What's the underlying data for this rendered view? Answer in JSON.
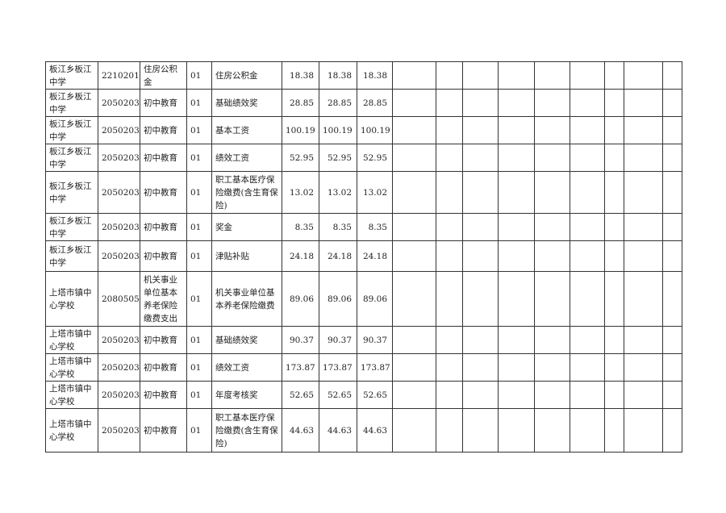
{
  "rows": [
    {
      "unit": "板江乡板江中学",
      "code": "2210201",
      "category": "住房公积金",
      "seq": "01",
      "item": "住房公积金",
      "v1": "18.38",
      "v2": "18.38",
      "v3": "18.38"
    },
    {
      "unit": "板江乡板江中学",
      "code": "2050203",
      "category": "初中教育",
      "seq": "01",
      "item": "基础绩效奖",
      "v1": "28.85",
      "v2": "28.85",
      "v3": "28.85"
    },
    {
      "unit": "板江乡板江中学",
      "code": "2050203",
      "category": "初中教育",
      "seq": "01",
      "item": "基本工资",
      "v1": "100.19",
      "v2": "100.19",
      "v3": "100.19"
    },
    {
      "unit": "板江乡板江中学",
      "code": "2050203",
      "category": "初中教育",
      "seq": "01",
      "item": "绩效工资",
      "v1": "52.95",
      "v2": "52.95",
      "v3": "52.95"
    },
    {
      "unit": "板江乡板江中学",
      "code": "2050203",
      "category": "初中教育",
      "seq": "01",
      "item": "职工基本医疗保险缴费(含生育保险)",
      "v1": "13.02",
      "v2": "13.02",
      "v3": "13.02"
    },
    {
      "unit": "板江乡板江中学",
      "code": "2050203",
      "category": "初中教育",
      "seq": "01",
      "item": "奖金",
      "v1": "8.35",
      "v2": "8.35",
      "v3": "8.35"
    },
    {
      "unit": "板江乡板江中学",
      "code": "2050203",
      "category": "初中教育",
      "seq": "01",
      "item": "津贴补贴",
      "v1": "24.18",
      "v2": "24.18",
      "v3": "24.18"
    },
    {
      "unit": "上塔市镇中心学校",
      "code": "2080505",
      "category": "机关事业单位基本养老保险缴费支出",
      "seq": "01",
      "item": "机关事业单位基本养老保险缴费",
      "v1": "89.06",
      "v2": "89.06",
      "v3": "89.06"
    },
    {
      "unit": "上塔市镇中心学校",
      "code": "2050203",
      "category": "初中教育",
      "seq": "01",
      "item": "基础绩效奖",
      "v1": "90.37",
      "v2": "90.37",
      "v3": "90.37"
    },
    {
      "unit": "上塔市镇中心学校",
      "code": "2050203",
      "category": "初中教育",
      "seq": "01",
      "item": "绩效工资",
      "v1": "173.87",
      "v2": "173.87",
      "v3": "173.87"
    },
    {
      "unit": "上塔市镇中心学校",
      "code": "2050203",
      "category": "初中教育",
      "seq": "01",
      "item": "年度考核奖",
      "v1": "52.65",
      "v2": "52.65",
      "v3": "52.65"
    },
    {
      "unit": "上塔市镇中心学校",
      "code": "2050203",
      "category": "初中教育",
      "seq": "01",
      "item": "职工基本医疗保险缴费(含生育保险)",
      "v1": "44.63",
      "v2": "44.63",
      "v3": "44.63"
    }
  ]
}
